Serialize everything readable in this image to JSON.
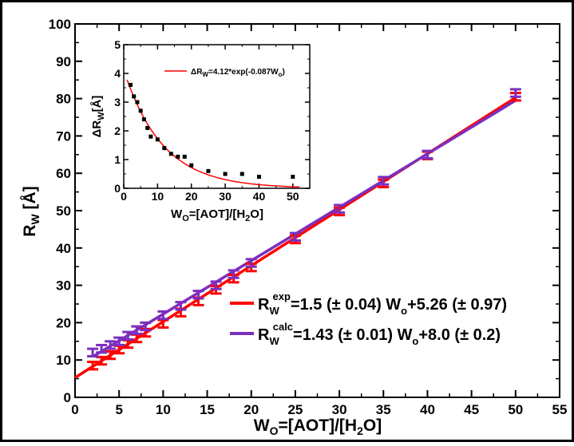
{
  "chart_data": [
    {
      "type": "line",
      "xlabel": "W",
      "xlabel_sub": "O",
      "xlabel_rest": "=[AOT]/[H",
      "xlabel_sub2": "2",
      "xlabel_end": "O]",
      "ylabel": "R",
      "ylabel_sub": "W",
      "ylabel_rest": " [Å]",
      "xlim": [
        0,
        55
      ],
      "ylim": [
        0,
        100
      ],
      "xticks": [
        "0",
        "5",
        "10",
        "15",
        "20",
        "25",
        "30",
        "35",
        "40",
        "45",
        "50",
        "55"
      ],
      "yticks": [
        "0",
        "10",
        "20",
        "30",
        "40",
        "50",
        "60",
        "70",
        "80",
        "90",
        "100"
      ],
      "legend_placement": "bottom-right",
      "series": [
        {
          "name": "R_W^exp",
          "legend_parts": [
            "R",
            "W",
            "exp",
            "=1.5 (± 0.04) W",
            "o",
            "+5.26 (± 0.97)"
          ],
          "color": "#ff0000",
          "x": [
            2,
            3,
            4,
            5,
            6,
            7,
            8,
            10,
            12,
            14,
            16,
            18,
            20,
            25,
            30,
            35,
            40,
            50
          ],
          "y": [
            8.5,
            9.8,
            11.3,
            12.8,
            14.3,
            15.8,
            17.3,
            19.7,
            22.7,
            25.7,
            28.8,
            31.8,
            34.8,
            42.3,
            49.8,
            57.3,
            64.8,
            80.5
          ],
          "err": 1.0,
          "fit": {
            "slope": 1.5,
            "intercept": 5.26
          }
        },
        {
          "name": "R_W^calc",
          "legend_parts": [
            "R",
            "W",
            "calc",
            "=1.43 (± 0.01) W",
            "o",
            "+8.0 (± 0.2)"
          ],
          "color": "#7b2fbe",
          "x": [
            2,
            3,
            4,
            5,
            6,
            7,
            8,
            10,
            12,
            14,
            16,
            18,
            20,
            25,
            30,
            35,
            40,
            50
          ],
          "y": [
            12.0,
            13.0,
            14.0,
            15.0,
            16.5,
            18.0,
            19.0,
            22.0,
            24.5,
            27.5,
            30.0,
            33.0,
            36.0,
            43.0,
            50.5,
            58.0,
            65.0,
            81.5
          ],
          "err": 1.0,
          "fit": {
            "slope": 1.43,
            "intercept": 8.0
          }
        }
      ]
    },
    {
      "type": "scatter",
      "placement": "inset-top-left",
      "xlabel": "W",
      "xlabel_sub": "O",
      "xlabel_rest": "=[AOT]/[H",
      "xlabel_sub2": "2",
      "xlabel_end": "O]",
      "ylabel": "ΔR",
      "ylabel_sub": "W",
      "ylabel_rest": "[Å]",
      "xlim": [
        0,
        55
      ],
      "ylim": [
        0,
        5
      ],
      "xticks": [
        "0",
        "10",
        "20",
        "30",
        "40",
        "50"
      ],
      "yticks": [
        "0",
        "1",
        "2",
        "3",
        "4",
        "5"
      ],
      "legend_parts": [
        "ΔR",
        "W",
        "=4.12*exp(-0.087W",
        "o",
        ")"
      ],
      "points": {
        "x": [
          2,
          3,
          4,
          5,
          6,
          7,
          8,
          10,
          12,
          14,
          16,
          18,
          20,
          25,
          30,
          35,
          40,
          50
        ],
        "y": [
          3.6,
          3.2,
          3.0,
          2.7,
          2.4,
          2.1,
          1.8,
          1.7,
          1.4,
          1.2,
          1.1,
          1.1,
          0.8,
          0.6,
          0.5,
          0.5,
          0.4,
          0.4
        ],
        "color": "#000000"
      },
      "fit": {
        "a": 4.12,
        "b": -0.087,
        "color": "#ff0000"
      }
    }
  ]
}
